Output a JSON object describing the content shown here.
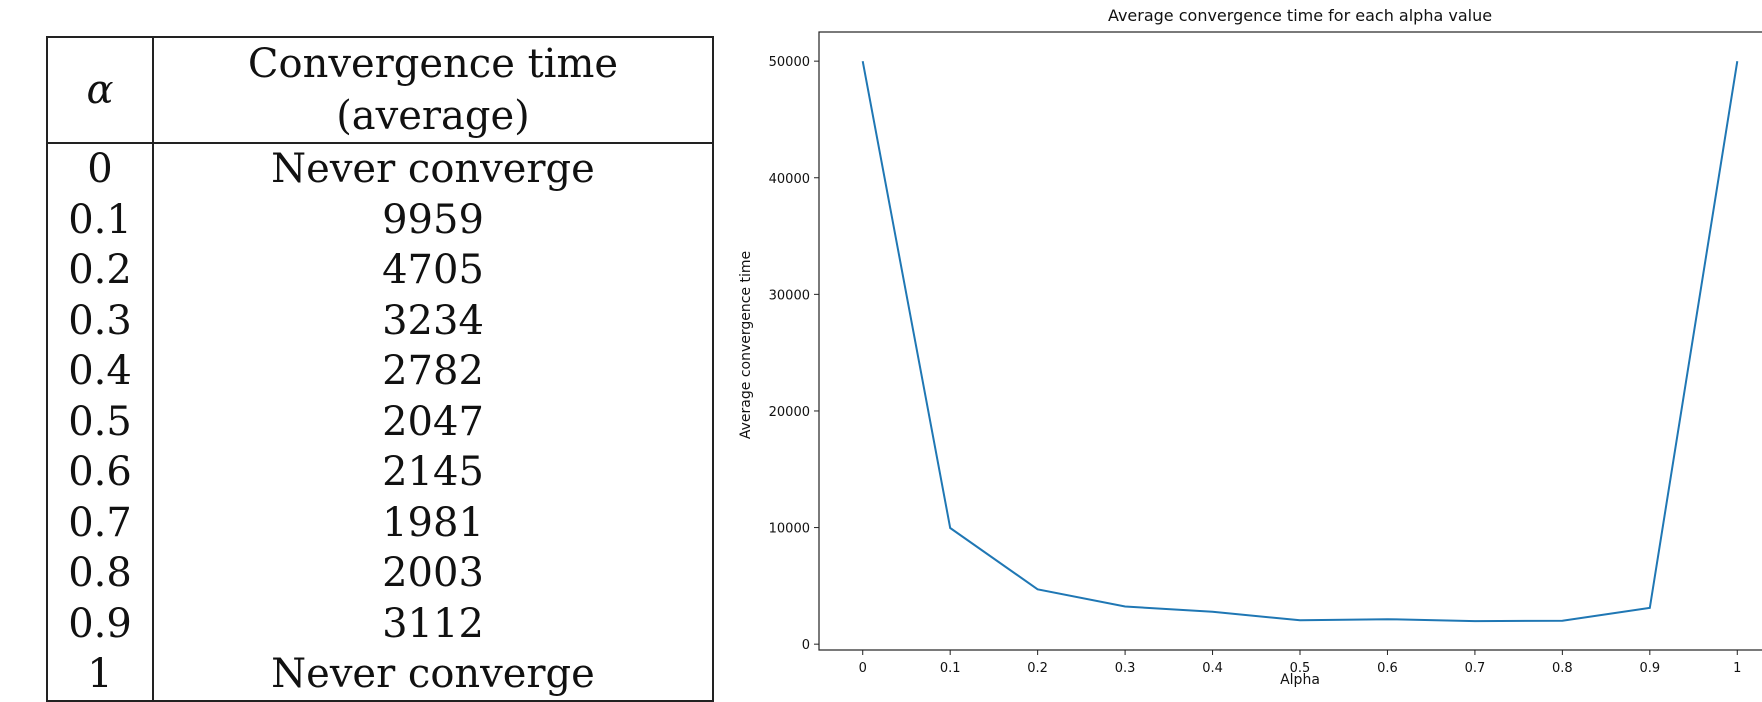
{
  "table": {
    "headers": {
      "alpha": "α",
      "time": "Convergence time (average)"
    },
    "rows": [
      {
        "alpha": "0",
        "time": "Never converge"
      },
      {
        "alpha": "0.1",
        "time": "9959"
      },
      {
        "alpha": "0.2",
        "time": "4705"
      },
      {
        "alpha": "0.3",
        "time": "3234"
      },
      {
        "alpha": "0.4",
        "time": "2782"
      },
      {
        "alpha": "0.5",
        "time": "2047"
      },
      {
        "alpha": "0.6",
        "time": "2145"
      },
      {
        "alpha": "0.7",
        "time": "1981"
      },
      {
        "alpha": "0.8",
        "time": "2003"
      },
      {
        "alpha": "0.9",
        "time": "3112"
      },
      {
        "alpha": "1",
        "time": "Never converge"
      }
    ]
  },
  "chart_data": {
    "type": "line",
    "title": "Average convergence time for each alpha value",
    "xlabel": "Alpha",
    "ylabel": "Average convergence time",
    "x": [
      0,
      0.1,
      0.2,
      0.3,
      0.4,
      0.5,
      0.6,
      0.7,
      0.8,
      0.9,
      1
    ],
    "x_tick_labels": [
      "0",
      "0.1",
      "0.2",
      "0.3",
      "0.4",
      "0.5",
      "0.6",
      "0.7",
      "0.8",
      "0.9",
      "1"
    ],
    "y_ticks": [
      0,
      10000,
      20000,
      30000,
      40000,
      50000
    ],
    "series": [
      {
        "values": [
          50000,
          9959,
          4705,
          3234,
          2782,
          2047,
          2145,
          1981,
          2003,
          3112,
          50000
        ]
      }
    ],
    "xlim": [
      -0.05,
      1.05
    ],
    "ylim": [
      -500,
      52500
    ],
    "grid": false,
    "line_color": "#1f77b4"
  }
}
